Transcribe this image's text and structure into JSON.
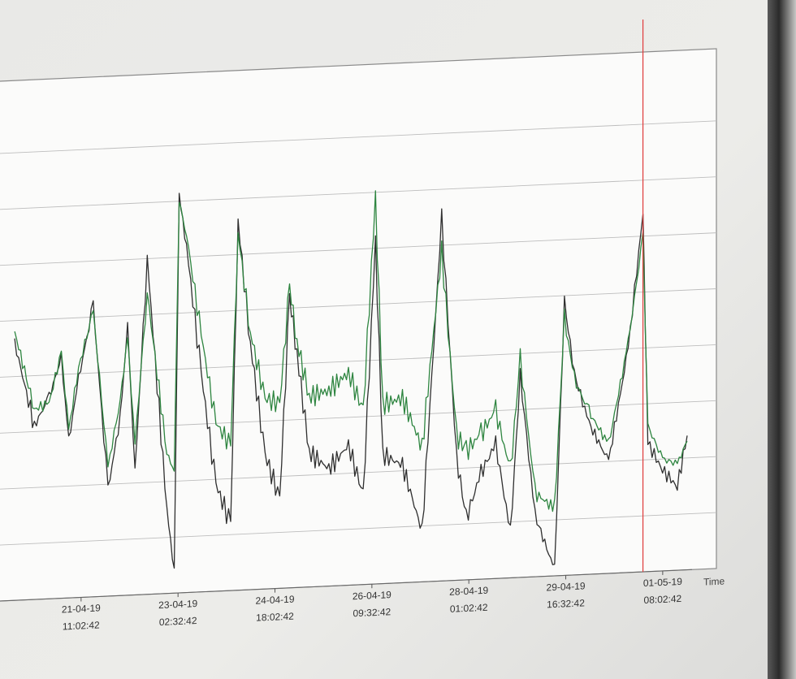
{
  "chart_data": {
    "type": "line",
    "title": "",
    "xlabel": "Time",
    "ylabel": "",
    "grid": true,
    "x_ticks": [
      {
        "date": "21-04-19",
        "time": "11:02:42"
      },
      {
        "date": "23-04-19",
        "time": "02:32:42"
      },
      {
        "date": "24-04-19",
        "time": "18:02:42"
      },
      {
        "date": "26-04-19",
        "time": "09:32:42"
      },
      {
        "date": "28-04-19",
        "time": "01:02:42"
      },
      {
        "date": "29-04-19",
        "time": "16:32:42"
      },
      {
        "date": "01-05-19",
        "time": "08:02:42"
      }
    ],
    "x": [
      "2019-04-20 08:00",
      "2019-04-20 16:00",
      "2019-04-20 22:00",
      "2019-04-21 03:00",
      "2019-04-21 06:00",
      "2019-04-21 10:00",
      "2019-04-21 16:00",
      "2019-04-21 22:00",
      "2019-04-22 03:00",
      "2019-04-22 06:00",
      "2019-04-22 09:00",
      "2019-04-22 14:00",
      "2019-04-22 22:00",
      "2019-04-23 01:00",
      "2019-04-23 03:00",
      "2019-04-23 06:00",
      "2019-04-23 12:00",
      "2019-04-23 18:00",
      "2019-04-24 00:00",
      "2019-04-24 03:00",
      "2019-04-24 08:00",
      "2019-04-24 14:00",
      "2019-04-24 20:00",
      "2019-04-25 00:00",
      "2019-04-25 03:00",
      "2019-04-25 08:00",
      "2019-04-25 16:00",
      "2019-04-26 00:00",
      "2019-04-26 06:00",
      "2019-04-26 11:00",
      "2019-04-26 14:00",
      "2019-04-26 22:00",
      "2019-04-27 06:00",
      "2019-04-27 14:00",
      "2019-04-27 20:00",
      "2019-04-28 00:00",
      "2019-04-28 06:00",
      "2019-04-28 12:00",
      "2019-04-28 18:00",
      "2019-04-28 22:00",
      "2019-04-29 04:00",
      "2019-04-29 12:00",
      "2019-04-29 16:00",
      "2019-04-29 20:00",
      "2019-04-30 02:00",
      "2019-04-30 10:00",
      "2019-04-30 18:00",
      "2019-05-01 00:00",
      "2019-05-01 02:00",
      "2019-05-01 08:00",
      "2019-05-01 14:00",
      "2019-05-01 18:00"
    ],
    "ylim": [
      0,
      9
    ],
    "series": [
      {
        "color": "#2f2f2f",
        "values": [
          4.6,
          3.1,
          3.6,
          4.3,
          2.8,
          3.9,
          5.2,
          1.9,
          3.2,
          4.8,
          2.2,
          6.0,
          1.5,
          0.4,
          7.1,
          6.2,
          3.9,
          1.9,
          1.2,
          6.6,
          4.4,
          2.4,
          1.6,
          5.2,
          4.2,
          2.4,
          2.1,
          2.5,
          1.6,
          6.1,
          2.3,
          2.1,
          0.9,
          6.5,
          2.2,
          1.1,
          1.9,
          2.4,
          0.8,
          3.6,
          1.1,
          0.1,
          4.9,
          3.6,
          2.7,
          2.0,
          4.0,
          6.4,
          2.3,
          1.8,
          1.5,
          2.4
        ]
      },
      {
        "color": "#2e8540",
        "values": [
          4.8,
          3.4,
          3.5,
          4.4,
          3.0,
          4.1,
          5.1,
          2.3,
          3.5,
          4.6,
          2.7,
          5.4,
          2.5,
          2.2,
          7.0,
          6.4,
          4.6,
          3.0,
          2.6,
          6.4,
          4.6,
          3.4,
          3.3,
          5.4,
          4.4,
          3.4,
          3.5,
          3.8,
          3.1,
          6.9,
          3.2,
          3.3,
          2.4,
          5.9,
          2.6,
          2.3,
          2.6,
          3.0,
          1.9,
          3.9,
          1.5,
          1.2,
          4.6,
          3.5,
          2.9,
          2.3,
          4.1,
          6.0,
          2.6,
          2.0,
          1.9,
          2.3
        ]
      }
    ],
    "marker_line": {
      "x": "2019-05-01 00:00",
      "color": "#e03a3a"
    }
  }
}
